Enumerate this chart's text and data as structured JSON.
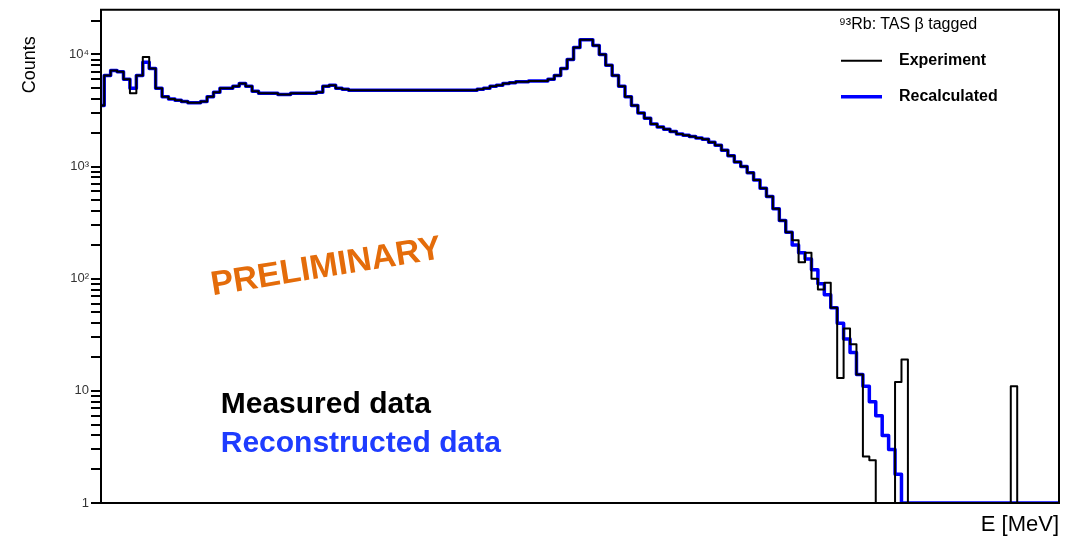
{
  "chart_data": {
    "type": "step",
    "xlabel": "E [MeV]",
    "ylabel": "Counts",
    "legend_title": "⁹³Rb: TAS β tagged",
    "legend": "top right",
    "log": "y",
    "annotations": [
      "PRELIMINARY",
      "Measured data",
      "Reconstructed data"
    ],
    "categories": [
      null,
      null,
      null,
      null,
      null,
      null,
      null,
      null,
      null,
      null,
      null,
      null,
      null,
      null,
      null,
      null,
      null,
      null,
      null,
      null,
      null,
      null,
      null,
      null,
      null,
      null,
      null,
      null,
      null,
      null,
      null,
      null,
      null,
      null,
      null,
      null,
      null,
      null,
      null,
      null,
      null,
      null,
      null,
      null,
      null,
      null,
      null,
      null,
      null,
      null,
      null,
      null,
      null,
      null,
      null,
      null,
      null,
      null,
      null,
      null,
      null,
      null,
      null,
      null,
      null,
      null,
      null,
      null,
      null,
      null,
      null,
      null,
      null,
      null,
      null,
      null,
      null,
      null,
      null,
      null,
      null,
      null,
      null,
      null,
      null,
      null,
      null,
      null,
      null,
      null,
      null,
      null,
      null,
      null,
      null,
      null,
      null,
      null,
      null,
      null,
      null,
      null,
      null,
      null,
      null,
      null,
      null,
      null,
      null,
      null,
      null,
      null,
      null,
      null,
      null,
      null,
      null,
      null,
      null,
      null,
      null,
      null,
      null,
      null,
      null,
      null,
      null,
      null,
      null,
      null,
      null,
      null,
      null,
      null,
      null,
      null,
      null,
      null,
      null,
      null,
      null,
      null,
      null,
      null,
      null,
      null,
      null,
      null,
      null,
      null
    ],
    "ylim": [
      1,
      25000
    ],
    "yticks": [
      {
        "value": 1,
        "label": "1"
      },
      {
        "value": 2,
        "label": null
      },
      {
        "value": 3,
        "label": null
      },
      {
        "value": 4,
        "label": null
      },
      {
        "value": 5,
        "label": null
      },
      {
        "value": 6,
        "label": null
      },
      {
        "value": 7,
        "label": null
      },
      {
        "value": 8,
        "label": null
      },
      {
        "value": 9,
        "label": null
      },
      {
        "value": 10,
        "label": "10"
      },
      {
        "value": 20,
        "label": null
      },
      {
        "value": 30,
        "label": null
      },
      {
        "value": 40,
        "label": null
      },
      {
        "value": 50,
        "label": null
      },
      {
        "value": 60,
        "label": null
      },
      {
        "value": 70,
        "label": null
      },
      {
        "value": 80,
        "label": null
      },
      {
        "value": 90,
        "label": null
      },
      {
        "value": 100,
        "label": "10²"
      },
      {
        "value": 200,
        "label": null
      },
      {
        "value": 300,
        "label": null
      },
      {
        "value": 400,
        "label": null
      },
      {
        "value": 500,
        "label": null
      },
      {
        "value": 600,
        "label": null
      },
      {
        "value": 700,
        "label": null
      },
      {
        "value": 800,
        "label": null
      },
      {
        "value": 900,
        "label": null
      },
      {
        "value": 1000,
        "label": "10³"
      },
      {
        "value": 2000,
        "label": null
      },
      {
        "value": 3000,
        "label": null
      },
      {
        "value": 4000,
        "label": null
      },
      {
        "value": 5000,
        "label": null
      },
      {
        "value": 6000,
        "label": null
      },
      {
        "value": 7000,
        "label": null
      },
      {
        "value": 8000,
        "label": null
      },
      {
        "value": 9000,
        "label": null
      },
      {
        "value": 10000,
        "label": "10⁴"
      },
      {
        "value": 20000,
        "label": null
      }
    ],
    "series": [
      {
        "name": "Experiment",
        "color": "#000000",
        "values": [
          3500,
          6500,
          7200,
          7000,
          6000,
          4500,
          6500,
          9500,
          7500,
          5000,
          4200,
          4000,
          3900,
          3800,
          3700,
          3700,
          3800,
          4200,
          4600,
          5000,
          5000,
          5200,
          5500,
          5200,
          4700,
          4500,
          4500,
          4500,
          4400,
          4400,
          4500,
          4500,
          4500,
          4500,
          4600,
          5200,
          5300,
          5000,
          4900,
          4800,
          4800,
          4800,
          4800,
          4800,
          4800,
          4800,
          4800,
          4800,
          4800,
          4800,
          4800,
          4800,
          4800,
          4800,
          4800,
          4800,
          4800,
          4800,
          4800,
          4900,
          5000,
          5200,
          5300,
          5500,
          5600,
          5700,
          5700,
          5800,
          5800,
          5800,
          6000,
          6500,
          7500,
          9000,
          11500,
          13500,
          13500,
          12000,
          10000,
          8000,
          6500,
          5200,
          4200,
          3500,
          3000,
          2700,
          2400,
          2250,
          2150,
          2050,
          1950,
          1900,
          1850,
          1800,
          1750,
          1650,
          1550,
          1400,
          1250,
          1100,
          1000,
          880,
          760,
          640,
          540,
          420,
          330,
          260,
          220,
          140,
          170,
          100,
          80,
          92,
          55,
          13,
          36,
          26,
          14,
          2.6,
          2.4,
          1,
          1,
          1,
          12,
          19,
          1,
          1,
          1,
          1,
          1,
          1,
          1,
          1,
          1,
          1,
          1,
          1,
          1,
          1,
          1,
          1,
          11,
          1,
          1,
          1,
          1,
          1,
          1,
          1
        ]
      },
      {
        "name": "Recalculated",
        "color": "#0000ff",
        "values": [
          3500,
          6500,
          7200,
          7000,
          6000,
          5000,
          6500,
          8500,
          7500,
          5000,
          4200,
          4000,
          3900,
          3800,
          3700,
          3700,
          3800,
          4200,
          4600,
          5000,
          5000,
          5200,
          5500,
          5200,
          4700,
          4500,
          4500,
          4500,
          4400,
          4400,
          4500,
          4500,
          4500,
          4500,
          4600,
          5200,
          5300,
          5000,
          4900,
          4800,
          4800,
          4800,
          4800,
          4800,
          4800,
          4800,
          4800,
          4800,
          4800,
          4800,
          4800,
          4800,
          4800,
          4800,
          4800,
          4800,
          4800,
          4800,
          4800,
          4900,
          5000,
          5200,
          5300,
          5500,
          5600,
          5700,
          5700,
          5800,
          5800,
          5800,
          6000,
          6500,
          7500,
          9000,
          11500,
          13500,
          13500,
          12000,
          10000,
          8000,
          6500,
          5200,
          4200,
          3500,
          3000,
          2700,
          2400,
          2250,
          2150,
          2050,
          1950,
          1900,
          1850,
          1800,
          1750,
          1650,
          1550,
          1400,
          1250,
          1100,
          1000,
          880,
          760,
          640,
          540,
          420,
          330,
          260,
          200,
          170,
          150,
          120,
          90,
          72,
          55,
          40,
          29,
          22,
          14,
          11,
          8,
          6,
          4,
          3,
          1.8,
          1,
          1,
          1,
          1,
          1,
          1,
          1,
          1,
          1,
          1,
          1,
          1,
          1,
          1,
          1,
          1,
          1,
          1,
          1,
          1,
          1,
          1,
          1,
          1,
          1
        ]
      }
    ]
  }
}
